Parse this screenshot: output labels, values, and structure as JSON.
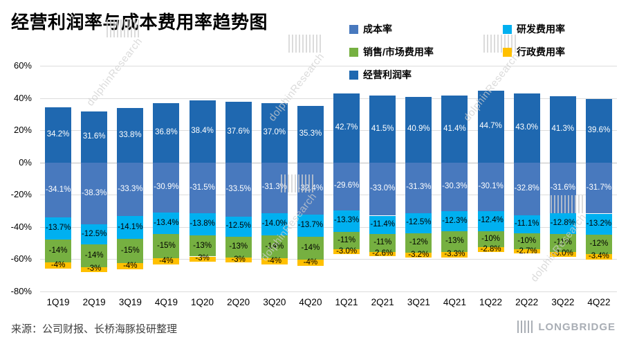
{
  "title": "经营利润率与成本费用率趋势图",
  "source": "来源：公司财报、长桥海豚投研整理",
  "watermark": "dolphinResearch",
  "brand": {
    "name": "LONGBRIDGE"
  },
  "chart_data": {
    "type": "bar",
    "stacked": true,
    "title": "经营利润率与成本费用率趋势图",
    "ylim": [
      -80,
      60
    ],
    "yticks": [
      "60%",
      "40%",
      "20%",
      "0%",
      "-20%",
      "-40%",
      "-60%",
      "-80%"
    ],
    "grid": true,
    "legend_position": "top-right",
    "categories": [
      "1Q19",
      "2Q19",
      "3Q19",
      "4Q19",
      "1Q20",
      "2Q20",
      "3Q20",
      "4Q20",
      "1Q21",
      "2Q21",
      "3Q21",
      "4Q21",
      "1Q22",
      "2Q22",
      "3Q22",
      "4Q22"
    ],
    "series": [
      {
        "key": "cost",
        "name": "成本率",
        "color": "#4879BE",
        "label_color": "#ffffff",
        "values": [
          -34.1,
          -38.3,
          -33.3,
          -30.9,
          -31.5,
          -33.5,
          -31.3,
          -32.4,
          -29.6,
          -33.0,
          -31.3,
          -30.3,
          -30.1,
          -32.8,
          -31.6,
          -31.7
        ],
        "labels": [
          "-34.1%",
          "-38.3%",
          "-33.3%",
          "-30.9%",
          "-31.5%",
          "-33.5%",
          "-31.3%",
          "-32.4%",
          "-29.6%",
          "-33.0%",
          "-31.3%",
          "-30.3%",
          "-30.1%",
          "-32.8%",
          "-31.6%",
          "-31.7%"
        ]
      },
      {
        "key": "rd",
        "name": "研发费用率",
        "color": "#00B0F0",
        "label_color": "#000000",
        "values": [
          -13.7,
          -12.5,
          -14.1,
          -13.4,
          -13.8,
          -12.5,
          -14.0,
          -13.7,
          -13.3,
          -11.4,
          -12.5,
          -12.3,
          -12.4,
          -11.1,
          -12.8,
          -13.2
        ],
        "labels": [
          "-13.7%",
          "-12.5%",
          "-14.1%",
          "-13.4%",
          "-13.8%",
          "-12.5%",
          "-14.0%",
          "-13.7%",
          "-13.3%",
          "-11.4%",
          "-12.5%",
          "-12.3%",
          "-12.4%",
          "-11.1%",
          "-12.8%",
          "-13.2%"
        ]
      },
      {
        "key": "sales",
        "name": "销售/市场费用率",
        "color": "#76B041",
        "label_color": "#000000",
        "values": [
          -14,
          -14,
          -15,
          -15,
          -13,
          -13,
          -14,
          -14,
          -11,
          -11,
          -12,
          -13,
          -10,
          -10,
          -11,
          -12
        ],
        "labels": [
          "-14%",
          "-14%",
          "-15%",
          "-15%",
          "-13%",
          "-13%",
          "-14%",
          "-14%",
          "-11%",
          "-11%",
          "-12%",
          "-13%",
          "-10%",
          "-10%",
          "-11%",
          "-12%"
        ]
      },
      {
        "key": "admin",
        "name": "行政费用率",
        "color": "#FFC000",
        "label_color": "#000000",
        "values": [
          -4,
          -3,
          -4,
          -4,
          -3,
          -3,
          -4,
          -4,
          -3.0,
          -2.6,
          -3.2,
          -3.3,
          -2.8,
          -2.7,
          -3.0,
          -3.4
        ],
        "labels": [
          "-4%",
          "-3%",
          "-4%",
          "-4%",
          "-3%",
          "-3%",
          "-4%",
          "-4%",
          "-3.0%",
          "-2.6%",
          "-3.2%",
          "-3.3%",
          "-2.8%",
          "-2.7%",
          "-3.0%",
          "-3.4%"
        ]
      },
      {
        "key": "operating",
        "name": "经营利润率",
        "color": "#1F68B0",
        "label_color": "#ffffff",
        "values": [
          34.2,
          31.6,
          33.8,
          36.8,
          38.4,
          37.6,
          37.0,
          35.3,
          42.7,
          41.5,
          40.9,
          41.4,
          44.7,
          43.0,
          41.3,
          39.6
        ],
        "labels": [
          "34.2%",
          "31.6%",
          "33.8%",
          "36.8%",
          "38.4%",
          "37.6%",
          "37.0%",
          "35.3%",
          "42.7%",
          "41.5%",
          "40.9%",
          "41.4%",
          "44.7%",
          "43.0%",
          "41.3%",
          "39.6%"
        ]
      }
    ]
  }
}
